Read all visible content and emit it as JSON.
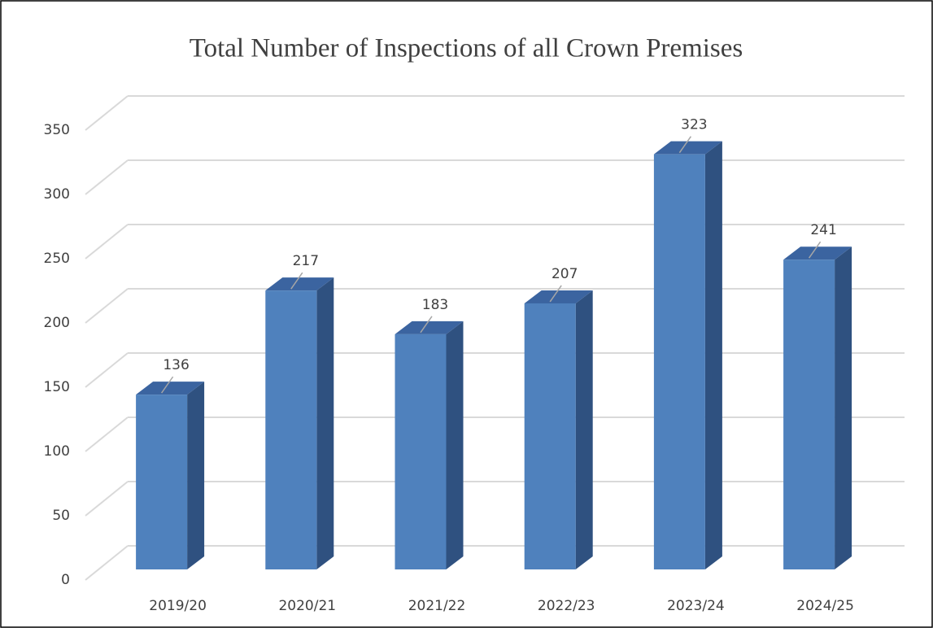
{
  "chart_data": {
    "type": "bar3d",
    "title": "Total Number of Inspections of all Crown Premises",
    "categories": [
      "2019/20",
      "2020/21",
      "2021/22",
      "2022/23",
      "2023/24",
      "2024/25"
    ],
    "values": [
      136,
      217,
      183,
      207,
      323,
      241
    ],
    "color": "#4f81bd",
    "ylim": [
      0,
      350
    ],
    "yticks": [
      0,
      50,
      100,
      150,
      200,
      250,
      300,
      350
    ],
    "grid": true
  }
}
